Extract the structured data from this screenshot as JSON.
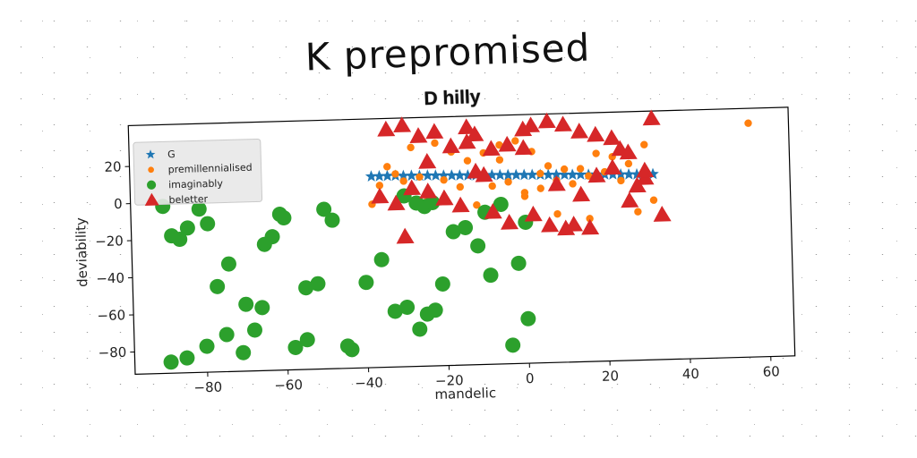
{
  "figure_title": "K prepromised",
  "chart_data": {
    "type": "scatter",
    "title": "D hilly",
    "xlabel": "mandelic",
    "ylabel": "deviability",
    "xlim": [
      -98,
      66
    ],
    "ylim": [
      -92,
      42
    ],
    "xticks": [
      -80,
      -60,
      -40,
      -20,
      0,
      20,
      40,
      60
    ],
    "yticks": [
      20,
      0,
      -20,
      -40,
      -60,
      -80
    ],
    "grid": false,
    "legend_position": "upper-left",
    "series": [
      {
        "name": "G",
        "marker": "star",
        "color": "#1f77b4",
        "x": [
          -38,
          -36,
          -34,
          -32,
          -30,
          -28,
          -26,
          -24,
          -22,
          -20,
          -18,
          -16,
          -14,
          -12,
          -10,
          -8,
          -6,
          -4,
          -2,
          0,
          2,
          4,
          6,
          8,
          10,
          12,
          14,
          16,
          18,
          20,
          22,
          24,
          26,
          28,
          30,
          32
        ],
        "y": [
          11,
          11,
          11,
          11,
          10.8,
          10.8,
          10.6,
          10.6,
          10.5,
          10.4,
          10.3,
          10.2,
          10.1,
          10,
          10,
          9.9,
          9.8,
          9.7,
          9.6,
          9.5,
          9.4,
          9.3,
          9.2,
          9.1,
          9,
          8.9,
          8.8,
          8.7,
          8.6,
          8.5,
          8.4,
          8.3,
          8.2,
          8.1,
          8,
          8
        ]
      },
      {
        "name": "premillennialised",
        "marker": "circle-small",
        "color": "#ff7f0e",
        "x": [
          56,
          -34,
          -36,
          -28,
          -22,
          -18,
          -14,
          -10,
          -6,
          -2,
          2,
          6,
          10,
          14,
          18,
          22,
          26,
          30,
          -30,
          -26,
          -20,
          -16,
          -12,
          -8,
          -4,
          0,
          4,
          8,
          12,
          16,
          20,
          24,
          28,
          -38,
          -24,
          -12,
          0,
          8,
          16,
          28,
          32,
          -32,
          -6,
          4
        ],
        "y": [
          34,
          16,
          6,
          26,
          28,
          23,
          18,
          22,
          26,
          28,
          22,
          14,
          12,
          12,
          20,
          18,
          14,
          24,
          8,
          10,
          8,
          4,
          12,
          4,
          6,
          -2,
          2,
          6,
          4,
          8,
          10,
          5,
          2,
          -4,
          -2,
          -6,
          0,
          -12,
          -15,
          -12,
          -6,
          12,
          18,
          10
        ]
      },
      {
        "name": "imaginably",
        "marker": "circle",
        "color": "#2ca02c",
        "x": [
          -90,
          -88,
          -86,
          -84,
          -81,
          -79,
          -77,
          -74,
          -71,
          -68,
          -66,
          -63,
          -61,
          -58,
          -55,
          -52,
          -48,
          -44,
          -40,
          -36,
          -33,
          -30,
          -27,
          -25,
          -23,
          -21,
          -18,
          -15,
          -12,
          -9,
          -6,
          -4,
          -2,
          0,
          -89,
          -85,
          -80,
          -75,
          -70,
          -65,
          -60,
          -55,
          -50,
          -45,
          -30,
          -27,
          -25,
          -23,
          -10,
          0
        ],
        "y": [
          -2,
          -18,
          -20,
          -14,
          -4,
          -12,
          -46,
          -34,
          -82,
          -70,
          -58,
          -20,
          -8,
          -80,
          -76,
          -46,
          -12,
          -82,
          -46,
          -34,
          -62,
          -60,
          -72,
          -64,
          -62,
          -48,
          -20,
          -18,
          -28,
          -44,
          -6,
          -82,
          -38,
          -68,
          -86,
          -84,
          -78,
          -72,
          -56,
          -24,
          -10,
          -48,
          -6,
          -80,
          0,
          -4,
          -6,
          -4,
          -10,
          -16
        ]
      },
      {
        "name": "beletter",
        "marker": "triangle",
        "color": "#d62728",
        "x": [
          -34,
          -30,
          -26,
          -22,
          -18,
          -14,
          -12,
          -8,
          -4,
          0,
          2,
          6,
          10,
          14,
          18,
          22,
          26,
          32,
          -36,
          -32,
          -28,
          -24,
          -20,
          -16,
          -12,
          -8,
          -4,
          2,
          6,
          10,
          14,
          18,
          22,
          26,
          30,
          -30,
          -20,
          -10,
          0,
          8,
          12,
          16,
          30,
          34,
          -24,
          -14,
          24,
          28
        ],
        "y": [
          36,
          38,
          32,
          34,
          26,
          36,
          32,
          24,
          26,
          34,
          36,
          38,
          36,
          32,
          30,
          28,
          20,
          38,
          0,
          -4,
          4,
          2,
          -2,
          -6,
          12,
          -10,
          -16,
          -12,
          -18,
          -20,
          -2,
          8,
          12,
          -6,
          6,
          -22,
          -2,
          10,
          24,
          4,
          -18,
          -20,
          10,
          -14,
          18,
          28,
          22,
          2
        ]
      }
    ]
  }
}
